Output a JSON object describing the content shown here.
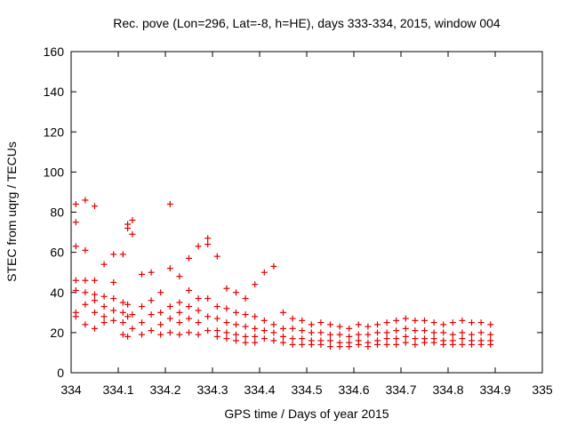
{
  "chart_data": {
    "type": "scatter",
    "title": "Rec. pove (Lon=296, Lat=-8, h=HE), days 333-334, 2015, window 004",
    "xlabel": "GPS time / Days of year 2015",
    "ylabel": "STEC from uqrg / TECUs",
    "xlim": [
      334,
      335
    ],
    "ylim": [
      0,
      160
    ],
    "x_ticks": [
      "334",
      "334.1",
      "334.2",
      "334.3",
      "334.4",
      "334.5",
      "334.6",
      "334.7",
      "334.8",
      "334.9",
      "335"
    ],
    "y_ticks": [
      "0",
      "20",
      "40",
      "60",
      "80",
      "100",
      "120",
      "140",
      "160"
    ],
    "grid": false,
    "legend": "none",
    "marker": "plus",
    "color": "#e00000",
    "series": [
      {
        "points": [
          [
            334.01,
            84
          ],
          [
            334.01,
            75
          ],
          [
            334.01,
            63
          ],
          [
            334.01,
            46
          ],
          [
            334.01,
            41
          ],
          [
            334.01,
            30
          ],
          [
            334.01,
            28
          ],
          [
            334.03,
            86
          ],
          [
            334.03,
            61
          ],
          [
            334.03,
            46
          ],
          [
            334.03,
            40
          ],
          [
            334.03,
            34
          ],
          [
            334.03,
            24
          ],
          [
            334.05,
            83
          ],
          [
            334.05,
            46
          ],
          [
            334.05,
            39
          ],
          [
            334.05,
            36
          ],
          [
            334.05,
            30
          ],
          [
            334.05,
            22
          ],
          [
            334.07,
            54
          ],
          [
            334.07,
            38
          ],
          [
            334.07,
            33
          ],
          [
            334.07,
            28
          ],
          [
            334.07,
            25
          ],
          [
            334.09,
            59
          ],
          [
            334.09,
            45
          ],
          [
            334.09,
            37
          ],
          [
            334.09,
            31
          ],
          [
            334.09,
            26
          ],
          [
            334.11,
            59
          ],
          [
            334.11,
            35
          ],
          [
            334.11,
            30
          ],
          [
            334.11,
            25
          ],
          [
            334.11,
            19
          ],
          [
            334.12,
            74
          ],
          [
            334.12,
            72
          ],
          [
            334.12,
            34
          ],
          [
            334.12,
            28
          ],
          [
            334.12,
            18
          ],
          [
            334.13,
            76
          ],
          [
            334.13,
            69
          ],
          [
            334.13,
            29
          ],
          [
            334.13,
            22
          ],
          [
            334.15,
            49
          ],
          [
            334.15,
            33
          ],
          [
            334.15,
            25
          ],
          [
            334.15,
            19
          ],
          [
            334.17,
            50
          ],
          [
            334.17,
            36
          ],
          [
            334.17,
            29
          ],
          [
            334.17,
            21
          ],
          [
            334.19,
            40
          ],
          [
            334.19,
            30
          ],
          [
            334.19,
            24
          ],
          [
            334.19,
            19
          ],
          [
            334.21,
            84
          ],
          [
            334.21,
            52
          ],
          [
            334.21,
            33
          ],
          [
            334.21,
            27
          ],
          [
            334.21,
            20
          ],
          [
            334.23,
            48
          ],
          [
            334.23,
            35
          ],
          [
            334.23,
            30
          ],
          [
            334.23,
            25
          ],
          [
            334.23,
            19
          ],
          [
            334.25,
            57
          ],
          [
            334.25,
            41
          ],
          [
            334.25,
            33
          ],
          [
            334.25,
            27
          ],
          [
            334.25,
            20
          ],
          [
            334.27,
            63
          ],
          [
            334.27,
            37
          ],
          [
            334.27,
            31
          ],
          [
            334.27,
            25
          ],
          [
            334.27,
            19
          ],
          [
            334.29,
            67
          ],
          [
            334.29,
            64
          ],
          [
            334.29,
            37
          ],
          [
            334.29,
            28
          ],
          [
            334.29,
            21
          ],
          [
            334.31,
            58
          ],
          [
            334.31,
            33
          ],
          [
            334.31,
            27
          ],
          [
            334.31,
            21
          ],
          [
            334.31,
            18
          ],
          [
            334.33,
            42
          ],
          [
            334.33,
            32
          ],
          [
            334.33,
            25
          ],
          [
            334.33,
            20
          ],
          [
            334.33,
            17
          ],
          [
            334.35,
            40
          ],
          [
            334.35,
            30
          ],
          [
            334.35,
            24
          ],
          [
            334.35,
            19
          ],
          [
            334.35,
            16
          ],
          [
            334.37,
            37
          ],
          [
            334.37,
            29
          ],
          [
            334.37,
            23
          ],
          [
            334.37,
            18
          ],
          [
            334.37,
            15
          ],
          [
            334.39,
            44
          ],
          [
            334.39,
            28
          ],
          [
            334.39,
            22
          ],
          [
            334.39,
            18
          ],
          [
            334.39,
            15
          ],
          [
            334.41,
            50
          ],
          [
            334.41,
            26
          ],
          [
            334.41,
            21
          ],
          [
            334.41,
            17
          ],
          [
            334.43,
            53
          ],
          [
            334.43,
            24
          ],
          [
            334.43,
            20
          ],
          [
            334.43,
            16
          ],
          [
            334.45,
            30
          ],
          [
            334.45,
            22
          ],
          [
            334.45,
            18
          ],
          [
            334.45,
            15
          ],
          [
            334.47,
            27
          ],
          [
            334.47,
            22
          ],
          [
            334.47,
            17
          ],
          [
            334.47,
            14
          ],
          [
            334.49,
            26
          ],
          [
            334.49,
            21
          ],
          [
            334.49,
            17
          ],
          [
            334.49,
            14
          ],
          [
            334.51,
            24
          ],
          [
            334.51,
            20
          ],
          [
            334.51,
            16
          ],
          [
            334.51,
            14
          ],
          [
            334.53,
            25
          ],
          [
            334.53,
            20
          ],
          [
            334.53,
            16
          ],
          [
            334.53,
            14
          ],
          [
            334.55,
            24
          ],
          [
            334.55,
            19
          ],
          [
            334.55,
            16
          ],
          [
            334.55,
            13
          ],
          [
            334.57,
            23
          ],
          [
            334.57,
            19
          ],
          [
            334.57,
            15
          ],
          [
            334.57,
            13
          ],
          [
            334.59,
            22
          ],
          [
            334.59,
            18
          ],
          [
            334.59,
            15
          ],
          [
            334.59,
            13
          ],
          [
            334.61,
            24
          ],
          [
            334.61,
            19
          ],
          [
            334.61,
            16
          ],
          [
            334.61,
            14
          ],
          [
            334.63,
            23
          ],
          [
            334.63,
            19
          ],
          [
            334.63,
            15
          ],
          [
            334.63,
            13
          ],
          [
            334.65,
            24
          ],
          [
            334.65,
            20
          ],
          [
            334.65,
            16
          ],
          [
            334.65,
            14
          ],
          [
            334.67,
            25
          ],
          [
            334.67,
            20
          ],
          [
            334.67,
            17
          ],
          [
            334.67,
            14
          ],
          [
            334.69,
            26
          ],
          [
            334.69,
            21
          ],
          [
            334.69,
            17
          ],
          [
            334.69,
            14
          ],
          [
            334.71,
            27
          ],
          [
            334.71,
            22
          ],
          [
            334.71,
            18
          ],
          [
            334.71,
            15
          ],
          [
            334.73,
            26
          ],
          [
            334.73,
            21
          ],
          [
            334.73,
            17
          ],
          [
            334.73,
            14
          ],
          [
            334.75,
            26
          ],
          [
            334.75,
            21
          ],
          [
            334.75,
            17
          ],
          [
            334.75,
            15
          ],
          [
            334.77,
            25
          ],
          [
            334.77,
            20
          ],
          [
            334.77,
            17
          ],
          [
            334.77,
            15
          ],
          [
            334.79,
            24
          ],
          [
            334.79,
            20
          ],
          [
            334.79,
            16
          ],
          [
            334.79,
            14
          ],
          [
            334.81,
            25
          ],
          [
            334.81,
            19
          ],
          [
            334.81,
            16
          ],
          [
            334.81,
            14
          ],
          [
            334.83,
            26
          ],
          [
            334.83,
            20
          ],
          [
            334.83,
            17
          ],
          [
            334.83,
            14
          ],
          [
            334.85,
            25
          ],
          [
            334.85,
            19
          ],
          [
            334.85,
            16
          ],
          [
            334.85,
            14
          ],
          [
            334.87,
            25
          ],
          [
            334.87,
            20
          ],
          [
            334.87,
            16
          ],
          [
            334.87,
            14
          ],
          [
            334.89,
            24
          ],
          [
            334.89,
            19
          ],
          [
            334.89,
            16
          ],
          [
            334.89,
            14
          ]
        ]
      }
    ]
  }
}
